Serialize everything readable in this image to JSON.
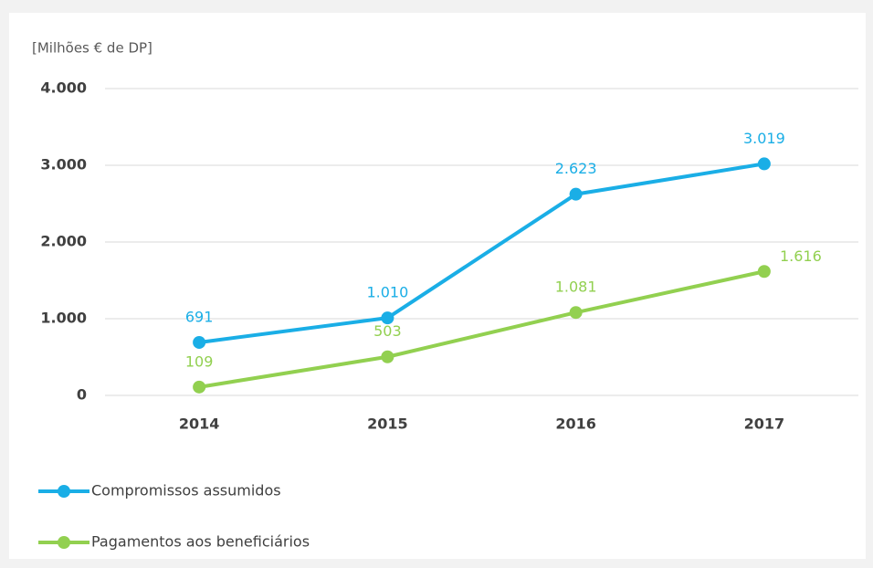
{
  "chart_data": {
    "type": "line",
    "y_label": "[Milhões € de DP]",
    "categories": [
      "2014",
      "2015",
      "2016",
      "2017"
    ],
    "series": [
      {
        "name": "Compromissos assumidos",
        "color": "#1aaee6",
        "values": [
          691,
          1010,
          2623,
          3019
        ],
        "value_labels": [
          "691",
          "1.010",
          "2.623",
          "3.019"
        ]
      },
      {
        "name": "Pagamentos aos beneficiários",
        "color": "#92d050",
        "values": [
          109,
          503,
          1081,
          1616
        ],
        "value_labels": [
          "109",
          "503",
          "1.081",
          "1.616"
        ]
      }
    ],
    "ylim": [
      0,
      4000
    ],
    "yticks": [
      0,
      {
        "value": 1000,
        "label": "1.000"
      },
      {
        "value": 2000,
        "label": "2.000"
      },
      {
        "value": 3000,
        "label": "3.000"
      },
      {
        "value": 4000,
        "label": "4.000"
      }
    ],
    "grid": true,
    "legend": "bottom-left"
  }
}
